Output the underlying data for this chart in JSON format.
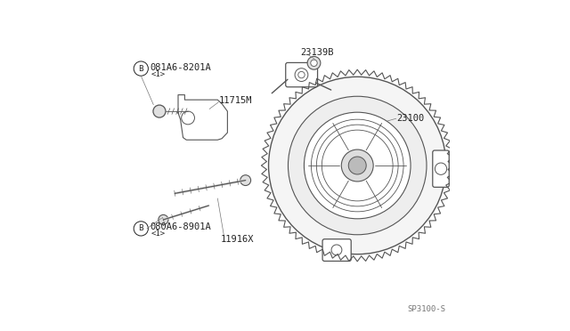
{
  "bg_color": "#ffffff",
  "line_color": "#555555",
  "text_color": "#222222",
  "fig_width": 6.4,
  "fig_height": 3.72,
  "dpi": 100,
  "labels": {
    "part_B1_main": "081A6-8201A",
    "part_B1_sub": "<1>",
    "part_B2_main": "080A6-8901A",
    "part_B2_sub": "<1>",
    "part_11715M": "11715M",
    "part_11916X": "11916X",
    "part_23139B": "23139B",
    "part_23100": "23100",
    "part_code": "SP3100-S"
  }
}
